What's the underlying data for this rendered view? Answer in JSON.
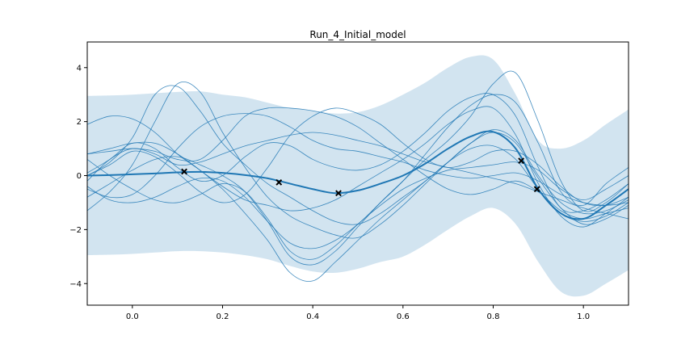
{
  "chart_data": {
    "type": "line",
    "title": "Run_4_Initial_model",
    "xlabel": "",
    "ylabel": "",
    "xlim": [
      -0.1,
      1.1
    ],
    "ylim": [
      -4.8,
      4.95
    ],
    "xticks": [
      0.0,
      0.2,
      0.4,
      0.6,
      0.8,
      1.0
    ],
    "xtick_labels": [
      "0.0",
      "0.2",
      "0.4",
      "0.6",
      "0.8",
      "1.0"
    ],
    "yticks": [
      -4,
      -2,
      0,
      2,
      4
    ],
    "ytick_labels": [
      "−4",
      "−2",
      "0",
      "2",
      "4"
    ],
    "grid": false,
    "colors": {
      "mean": "#1f77b4",
      "band": "#1f77b4",
      "samples": "#1f77b4",
      "observations": "#000000"
    },
    "x": [
      -0.1,
      -0.05,
      0.0,
      0.05,
      0.1,
      0.15,
      0.2,
      0.25,
      0.3,
      0.35,
      0.4,
      0.45,
      0.5,
      0.55,
      0.6,
      0.65,
      0.7,
      0.75,
      0.8,
      0.85,
      0.9,
      0.95,
      1.0,
      1.05,
      1.1
    ],
    "mean": [
      0.0,
      0.02,
      0.05,
      0.08,
      0.12,
      0.14,
      0.1,
      0.02,
      -0.1,
      -0.3,
      -0.5,
      -0.65,
      -0.55,
      -0.3,
      0.0,
      0.45,
      1.0,
      1.45,
      1.62,
      1.0,
      -0.5,
      -1.4,
      -1.6,
      -1.1,
      -0.5
    ],
    "upper": [
      2.95,
      2.97,
      3.0,
      3.05,
      3.1,
      3.12,
      3.0,
      2.9,
      2.7,
      2.5,
      2.4,
      2.3,
      2.35,
      2.6,
      3.0,
      3.45,
      4.0,
      4.4,
      4.3,
      3.0,
      1.3,
      1.0,
      1.3,
      1.9,
      2.45
    ],
    "lower": [
      -2.95,
      -2.93,
      -2.9,
      -2.85,
      -2.8,
      -2.8,
      -2.85,
      -2.95,
      -3.1,
      -3.35,
      -3.55,
      -3.6,
      -3.45,
      -3.2,
      -3.0,
      -2.55,
      -2.0,
      -1.5,
      -1.2,
      -1.8,
      -3.2,
      -4.3,
      -4.45,
      -4.0,
      -3.5
    ],
    "samples": [
      [
        0.1,
        0.6,
        1.2,
        1.0,
        0.3,
        -0.2,
        0.0,
        0.7,
        1.2,
        1.1,
        0.6,
        0.3,
        0.2,
        0.4,
        0.9,
        1.6,
        2.4,
        2.9,
        3.0,
        2.2,
        0.3,
        -1.2,
        -1.3,
        -0.9,
        -0.3
      ],
      [
        1.9,
        2.2,
        2.1,
        1.6,
        0.8,
        0.2,
        -0.4,
        -0.9,
        -1.1,
        -1.3,
        -1.2,
        -0.9,
        -0.4,
        0.1,
        0.6,
        1.2,
        1.9,
        2.4,
        2.5,
        1.5,
        -0.3,
        -1.5,
        -1.9,
        -1.4,
        -0.8
      ],
      [
        0.0,
        0.5,
        1.4,
        3.0,
        3.3,
        2.4,
        1.2,
        0.4,
        -0.3,
        -0.8,
        -1.3,
        -1.7,
        -1.8,
        -1.4,
        -0.8,
        -0.2,
        0.5,
        1.0,
        1.1,
        0.6,
        -0.5,
        -1.4,
        -1.7,
        -1.5,
        -1.0
      ],
      [
        -1.3,
        -0.6,
        0.4,
        2.0,
        3.4,
        3.1,
        1.6,
        0.3,
        -0.8,
        -1.5,
        -1.9,
        -2.2,
        -2.3,
        -1.8,
        -1.1,
        -0.3,
        0.5,
        1.2,
        1.6,
        1.2,
        -0.1,
        -1.2,
        -1.8,
        -1.6,
        -1.1
      ],
      [
        0.8,
        1.0,
        1.2,
        1.2,
        0.8,
        0.2,
        -0.5,
        -1.4,
        -2.4,
        -3.6,
        -3.9,
        -3.2,
        -2.4,
        -1.6,
        -0.9,
        -0.2,
        0.5,
        1.2,
        1.7,
        1.3,
        0.0,
        -1.0,
        -1.4,
        -1.3,
        -0.9
      ],
      [
        -0.8,
        -0.3,
        0.2,
        0.6,
        0.7,
        0.4,
        0.0,
        -0.6,
        -1.7,
        -3.0,
        -3.3,
        -2.8,
        -1.9,
        -1.0,
        -0.2,
        0.6,
        1.3,
        2.2,
        3.4,
        3.8,
        2.0,
        -0.2,
        -1.3,
        -1.0,
        -0.3
      ],
      [
        -0.4,
        -0.9,
        -1.0,
        -0.8,
        -0.4,
        -0.1,
        -0.2,
        -0.8,
        -1.7,
        -2.5,
        -2.7,
        -2.4,
        -1.8,
        -1.0,
        -0.2,
        0.8,
        1.8,
        2.6,
        3.0,
        2.7,
        1.2,
        -0.6,
        -1.1,
        -0.3,
        0.3
      ],
      [
        -0.2,
        0.6,
        1.0,
        0.8,
        0.4,
        0.5,
        0.8,
        1.1,
        1.3,
        1.5,
        1.6,
        1.5,
        1.3,
        1.1,
        0.8,
        0.5,
        0.3,
        0.1,
        -0.1,
        -0.3,
        -0.6,
        -0.9,
        -1.2,
        -1.4,
        -1.6
      ],
      [
        0.8,
        0.9,
        1.0,
        0.9,
        0.6,
        0.6,
        1.3,
        2.2,
        2.5,
        2.5,
        2.4,
        2.2,
        1.8,
        1.2,
        0.6,
        0.0,
        -0.5,
        -0.7,
        -0.5,
        -0.2,
        -0.6,
        -1.3,
        -1.6,
        -1.4,
        -1.2
      ],
      [
        0.0,
        0.4,
        0.9,
        0.7,
        0.1,
        -0.6,
        -1.0,
        -0.7,
        0.3,
        1.5,
        2.2,
        2.5,
        2.3,
        1.9,
        1.2,
        0.6,
        0.3,
        0.5,
        0.9,
        0.9,
        0.4,
        -0.4,
        -1.0,
        -1.1,
        -0.8
      ],
      [
        0.6,
        0.0,
        -0.5,
        -0.9,
        -1.0,
        -0.7,
        -0.3,
        -0.6,
        -1.6,
        -2.8,
        -3.1,
        -2.6,
        -1.8,
        -1.1,
        -0.5,
        -0.1,
        0.2,
        0.3,
        0.4,
        0.5,
        0.2,
        -0.5,
        -0.9,
        -0.5,
        0.0
      ],
      [
        -0.5,
        -0.8,
        -0.7,
        0.0,
        1.0,
        1.8,
        2.2,
        2.3,
        2.2,
        1.8,
        1.3,
        1.0,
        0.9,
        0.7,
        0.5,
        0.2,
        0.0,
        -0.1,
        0.0,
        0.1,
        -0.2,
        -0.7,
        -1.0,
        -1.1,
        -1.0
      ]
    ],
    "observations": [
      {
        "x": 0.115,
        "y": 0.15
      },
      {
        "x": 0.325,
        "y": -0.25
      },
      {
        "x": 0.457,
        "y": -0.65
      },
      {
        "x": 0.862,
        "y": 0.55
      },
      {
        "x": 0.897,
        "y": -0.5
      }
    ]
  }
}
